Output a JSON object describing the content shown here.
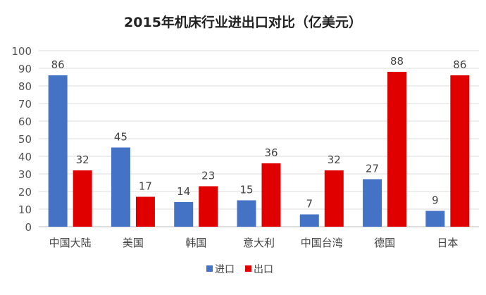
{
  "chart_data": {
    "type": "bar",
    "title": "2015年机床行业进出口对比（亿美元）",
    "categories": [
      "中国大陆",
      "美国",
      "韩国",
      "意大利",
      "中国台湾",
      "德国",
      "日本"
    ],
    "series": [
      {
        "name": "进口",
        "color": "#4472C4",
        "values": [
          86,
          45,
          14,
          15,
          7,
          27,
          9
        ]
      },
      {
        "name": "出口",
        "color": "#E00000",
        "values": [
          32,
          17,
          23,
          36,
          32,
          88,
          86
        ]
      }
    ],
    "ylim": [
      0,
      100
    ],
    "yticks": [
      0,
      10,
      20,
      30,
      40,
      50,
      60,
      70,
      80,
      90,
      100
    ],
    "grid": true,
    "legend": "bottom",
    "xlabel": "",
    "ylabel": ""
  }
}
